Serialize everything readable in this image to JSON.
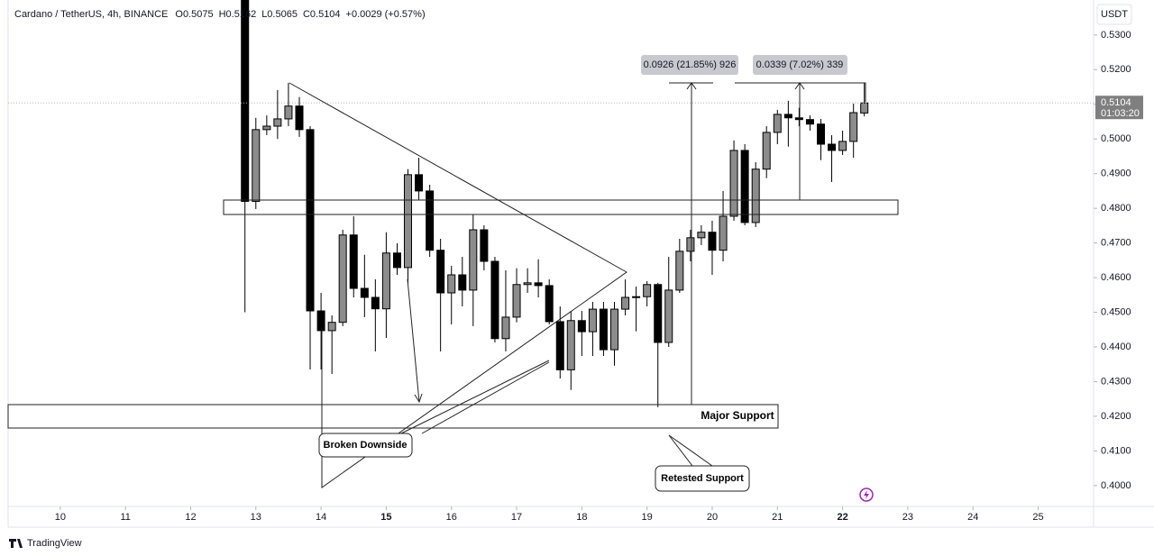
{
  "header": {
    "symbol": "Cardano / TetherUS, 4h, BINANCE",
    "open": "O0.5075",
    "high": "H0.5162",
    "low": "L0.5065",
    "close": "C0.5104",
    "change": "+0.0029 (+0.57%)"
  },
  "currency": "USDT",
  "brand": "TradingView",
  "chart_data": {
    "type": "candlestick",
    "up_color": "#8c8c8c",
    "down_color": "#000000",
    "x": [
      12.833,
      13,
      13.167,
      13.333,
      13.5,
      13.667,
      13.833,
      14,
      14.167,
      14.333,
      14.5,
      14.667,
      14.833,
      15,
      15.167,
      15.333,
      15.5,
      15.667,
      15.833,
      16,
      16.167,
      16.333,
      16.5,
      16.667,
      16.833,
      17,
      17.167,
      17.333,
      17.5,
      17.667,
      17.833,
      18,
      18.167,
      18.333,
      18.5,
      18.667,
      18.833,
      19,
      19.167,
      19.333,
      19.5,
      19.667,
      19.833,
      20,
      20.167,
      20.333,
      20.5,
      20.667,
      20.833,
      21,
      21.167,
      21.333,
      21.5,
      21.667,
      21.833,
      22,
      22.167,
      22.333
    ],
    "open": [
      0.54,
      0.482,
      0.5027,
      0.5037,
      0.5058,
      0.5095,
      0.5027,
      0.4504,
      0.4447,
      0.4471,
      0.4723,
      0.4569,
      0.4543,
      0.451,
      0.4671,
      0.4629,
      0.4897,
      0.485,
      0.4679,
      0.4556,
      0.4608,
      0.4564,
      0.4738,
      0.4647,
      0.4424,
      0.4486,
      0.458,
      0.4585,
      0.4577,
      0.4473,
      0.4334,
      0.4476,
      0.4444,
      0.4509,
      0.4392,
      0.4509,
      0.4543,
      0.4545,
      0.458,
      0.4413,
      0.4564,
      0.4676,
      0.4715,
      0.4731,
      0.4679,
      0.4777,
      0.4967,
      0.4759,
      0.4913,
      0.5019,
      0.5071,
      0.5061,
      0.5056,
      0.5043,
      0.4985,
      0.4967,
      0.4993,
      0.5075
    ],
    "high": [
      0.54,
      0.5061,
      0.5068,
      0.5141,
      0.5162,
      0.5121,
      0.5037,
      0.4556,
      0.4491,
      0.4738,
      0.4777,
      0.4666,
      0.4595,
      0.4731,
      0.4699,
      0.4913,
      0.4946,
      0.4868,
      0.4712,
      0.4634,
      0.466,
      0.4783,
      0.4751,
      0.466,
      0.4621,
      0.4627,
      0.4627,
      0.4653,
      0.4595,
      0.4517,
      0.4504,
      0.4504,
      0.453,
      0.453,
      0.453,
      0.4595,
      0.4574,
      0.459,
      0.4585,
      0.466,
      0.4712,
      0.4738,
      0.4751,
      0.4764,
      0.485,
      0.4996,
      0.4985,
      0.4933,
      0.5037,
      0.5084,
      0.511,
      0.509,
      0.5068,
      0.5058,
      0.5011,
      0.5024,
      0.5102,
      0.5162
    ],
    "low": [
      0.45,
      0.4798,
      0.5011,
      0.5,
      0.5037,
      0.5006,
      0.4335,
      0.4335,
      0.4322,
      0.446,
      0.4543,
      0.4486,
      0.4387,
      0.4426,
      0.4608,
      0.4582,
      0.4824,
      0.466,
      0.4387,
      0.4465,
      0.4517,
      0.446,
      0.4621,
      0.4413,
      0.4387,
      0.4471,
      0.4556,
      0.4543,
      0.4465,
      0.4309,
      0.4276,
      0.4374,
      0.4374,
      0.4374,
      0.4346,
      0.4491,
      0.4445,
      0.4517,
      0.4226,
      0.44,
      0.4556,
      0.4647,
      0.4694,
      0.4608,
      0.4647,
      0.4764,
      0.4751,
      0.4746,
      0.4887,
      0.4985,
      0.4978,
      0.5037,
      0.5024,
      0.4939,
      0.4876,
      0.4954,
      0.4946,
      0.5065
    ],
    "close": [
      0.482,
      0.5027,
      0.5037,
      0.5058,
      0.5095,
      0.5027,
      0.4504,
      0.4447,
      0.4471,
      0.4723,
      0.4569,
      0.4543,
      0.451,
      0.4671,
      0.4629,
      0.4897,
      0.485,
      0.4679,
      0.4556,
      0.4608,
      0.4564,
      0.4738,
      0.4647,
      0.4424,
      0.4486,
      0.458,
      0.4585,
      0.4577,
      0.4473,
      0.4334,
      0.4476,
      0.4444,
      0.4509,
      0.4392,
      0.4509,
      0.4543,
      0.4545,
      0.458,
      0.4413,
      0.4564,
      0.4676,
      0.4715,
      0.4731,
      0.4679,
      0.4777,
      0.4967,
      0.4759,
      0.4913,
      0.5019,
      0.5071,
      0.5061,
      0.5056,
      0.5043,
      0.4985,
      0.4967,
      0.4993,
      0.5076,
      0.5104
    ],
    "xlim": [
      9.2,
      25.85
    ],
    "xticks": [
      10,
      11,
      12,
      13,
      14,
      15,
      16,
      17,
      18,
      19,
      20,
      21,
      22,
      23,
      24,
      25
    ],
    "ylim": [
      0.3945,
      0.5401
    ],
    "yticks": [
      {
        "value": 0.4,
        "label": "0.4000"
      },
      {
        "value": 0.41,
        "label": "0.4100"
      },
      {
        "value": 0.42,
        "label": "0.4200"
      },
      {
        "value": 0.43,
        "label": "0.4300"
      },
      {
        "value": 0.44,
        "label": "0.4400"
      },
      {
        "value": 0.45,
        "label": "0.4500"
      },
      {
        "value": 0.46,
        "label": "0.4600"
      },
      {
        "value": 0.47,
        "label": "0.4700"
      },
      {
        "value": 0.48,
        "label": "0.4800"
      },
      {
        "value": 0.49,
        "label": "0.4900"
      },
      {
        "value": 0.5,
        "label": "0.5000"
      },
      {
        "value": 0.51,
        "label": "0.5100"
      },
      {
        "value": 0.52,
        "label": "0.5200"
      },
      {
        "value": 0.53,
        "label": "0.5300"
      }
    ],
    "last_price": 0.5104,
    "countdown": "01:03:20",
    "annotations": {
      "measure_1": "0.0926 (21.85%) 926",
      "measure_2": "0.0339 (7.02%) 339",
      "major_support": "Major Support",
      "broken_downside": "Broken Downside",
      "retested_support": "Retested Support"
    }
  }
}
